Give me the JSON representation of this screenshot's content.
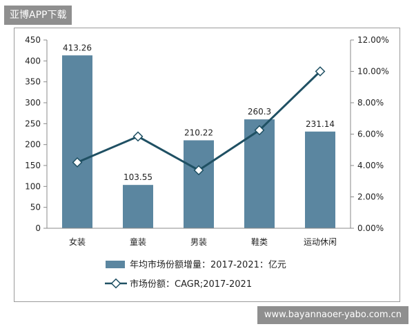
{
  "header": {
    "tag": "亚博APP下载"
  },
  "footer": {
    "watermark": "www.bayannaoer-yabo.com.cn"
  },
  "chart_data": {
    "type": "bar",
    "categories": [
      "女装",
      "童装",
      "男装",
      "鞋类",
      "运动休闲"
    ],
    "series": [
      {
        "name": "年均市场份额增量：2017-2021：亿元",
        "type": "bar",
        "axis": "left",
        "values": [
          413.26,
          103.55,
          210.22,
          260.3,
          231.14
        ],
        "data_labels": [
          "413.26",
          "103.55",
          "210.22",
          "260.3",
          "231.14"
        ],
        "color": "#5b86a0"
      },
      {
        "name": "市场份额：CAGR;2017-2021",
        "type": "line",
        "axis": "right",
        "values": [
          4.2,
          5.85,
          3.7,
          6.25,
          10.0
        ],
        "unit": "%",
        "color": "#1f5063"
      }
    ],
    "y_left": {
      "min": 0,
      "max": 450,
      "ticks": [
        "0",
        "50",
        "100",
        "150",
        "200",
        "250",
        "300",
        "350",
        "400",
        "450"
      ]
    },
    "y_right": {
      "min": 0,
      "max": 12,
      "ticks": [
        "0.00%",
        "2.00%",
        "4.00%",
        "6.00%",
        "8.00%",
        "10.00%",
        "12.00%"
      ]
    },
    "legend": "bottom",
    "grid": false
  }
}
